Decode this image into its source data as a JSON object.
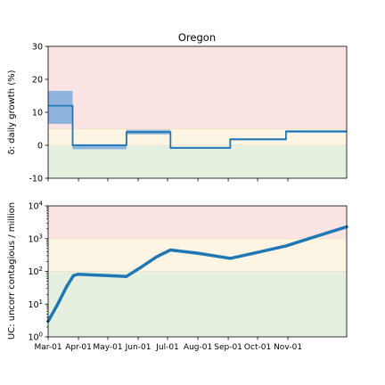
{
  "chart_data": [
    {
      "type": "line",
      "title": "Oregon",
      "ylabel": "δ: daily growth (%)",
      "xlim": [
        "2020-03-01",
        "2020-12-31"
      ],
      "ylim": [
        -10,
        30
      ],
      "yticks": [
        -10,
        0,
        10,
        20,
        30
      ],
      "zones": [
        {
          "from": -10,
          "to": 0,
          "color": "#e6f0e1"
        },
        {
          "from": 0,
          "to": 5,
          "color": "#fdf5e3"
        },
        {
          "from": 5,
          "to": 30,
          "color": "#fde4e4"
        }
      ],
      "series": [
        {
          "color": "#1f77b4",
          "band_color": "#8eb3dd",
          "segments": [
            {
              "start": "2020-03-01",
              "end": "2020-03-26",
              "value": 12,
              "low": 6.5,
              "high": 16.5
            },
            {
              "start": "2020-03-26",
              "end": "2020-05-20",
              "value": 0,
              "low": -1.2,
              "high": 0.3
            },
            {
              "start": "2020-05-20",
              "end": "2020-07-04",
              "value": 4,
              "low": 3.3,
              "high": 4.7
            },
            {
              "start": "2020-07-04",
              "end": "2020-09-03",
              "value": -0.8,
              "low": -1.1,
              "high": -0.5
            },
            {
              "start": "2020-09-03",
              "end": "2020-10-30",
              "value": 1.8,
              "low": 1.5,
              "high": 2.1
            },
            {
              "start": "2020-10-30",
              "end": "2020-12-31",
              "value": 4.2,
              "low": 3.8,
              "high": 4.6
            }
          ]
        }
      ]
    },
    {
      "type": "line",
      "ylabel": "UC: uncorr contagious / million",
      "yscale": "log",
      "ylim": [
        1,
        10000
      ],
      "yticks": [
        {
          "value": 1,
          "base": "10",
          "exp": "0"
        },
        {
          "value": 10,
          "base": "10",
          "exp": "1"
        },
        {
          "value": 100,
          "base": "10",
          "exp": "2"
        },
        {
          "value": 1000,
          "base": "10",
          "exp": "3"
        },
        {
          "value": 10000,
          "base": "10",
          "exp": "4"
        }
      ],
      "zones": [
        {
          "from": 1,
          "to": 100,
          "color": "#e6f0e1"
        },
        {
          "from": 100,
          "to": 1000,
          "color": "#fdf5e3"
        },
        {
          "from": 1000,
          "to": 10000,
          "color": "#fde4e4"
        }
      ],
      "x_tick_labels": [
        {
          "date": "2020-03-01",
          "label": "Mar-01"
        },
        {
          "date": "2020-04-01",
          "label": "Apr-01"
        },
        {
          "date": "2020-05-01",
          "label": "May-01"
        },
        {
          "date": "2020-06-01",
          "label": "Jun-01"
        },
        {
          "date": "2020-07-01",
          "label": "Jul-01"
        },
        {
          "date": "2020-08-01",
          "label": "Aug-01"
        },
        {
          "date": "2020-09-01",
          "label": "Sep-01"
        },
        {
          "date": "2020-10-01",
          "label": "Oct-01"
        },
        {
          "date": "2020-11-01",
          "label": "Nov-01"
        }
      ],
      "series": [
        {
          "color": "#1f77b4",
          "points": [
            {
              "x": "2020-03-01",
              "y": 3
            },
            {
              "x": "2020-03-10",
              "y": 9
            },
            {
              "x": "2020-03-20",
              "y": 35
            },
            {
              "x": "2020-03-27",
              "y": 75
            },
            {
              "x": "2020-04-01",
              "y": 82
            },
            {
              "x": "2020-04-15",
              "y": 78
            },
            {
              "x": "2020-05-01",
              "y": 74
            },
            {
              "x": "2020-05-20",
              "y": 70
            },
            {
              "x": "2020-06-05",
              "y": 140
            },
            {
              "x": "2020-06-20",
              "y": 280
            },
            {
              "x": "2020-07-04",
              "y": 450
            },
            {
              "x": "2020-08-01",
              "y": 360
            },
            {
              "x": "2020-09-03",
              "y": 250
            },
            {
              "x": "2020-10-01",
              "y": 380
            },
            {
              "x": "2020-10-30",
              "y": 600
            },
            {
              "x": "2020-12-01",
              "y": 1200
            },
            {
              "x": "2020-12-31",
              "y": 2300
            }
          ]
        }
      ]
    }
  ]
}
